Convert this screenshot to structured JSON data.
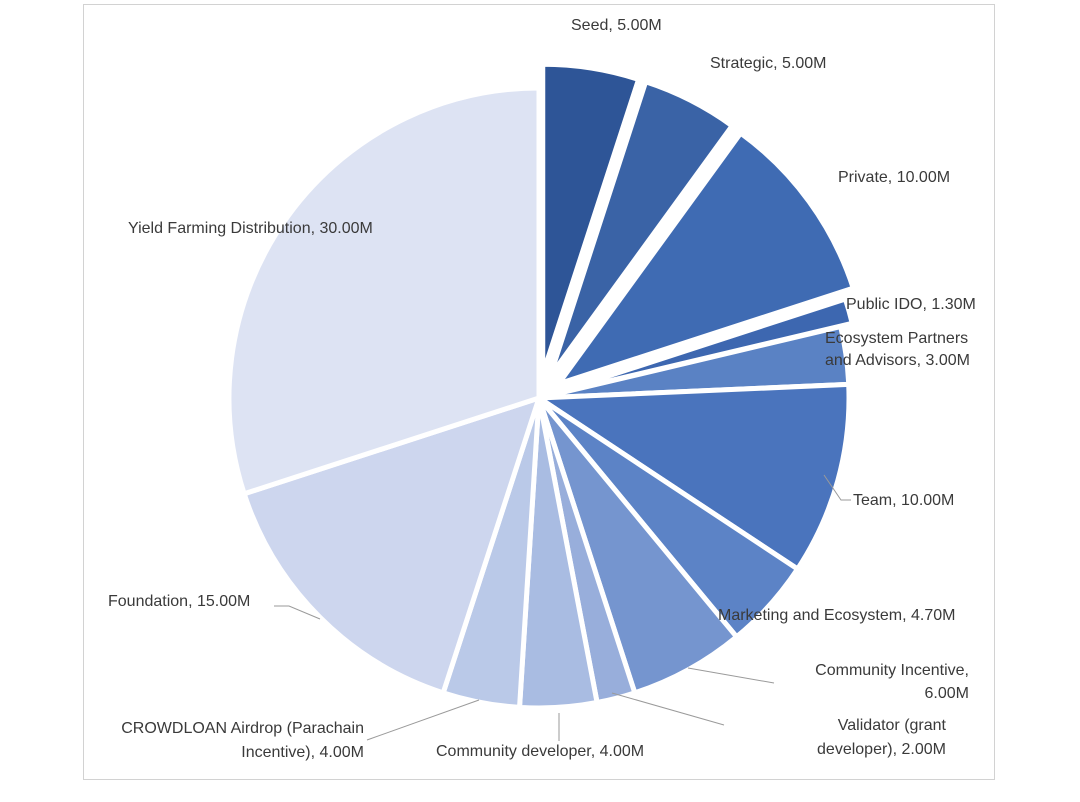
{
  "chart_data": {
    "type": "pie",
    "title": "",
    "slices": [
      {
        "label": "Seed, 5.00M",
        "name": "Seed",
        "value": 5.0,
        "color": "#2e5597"
      },
      {
        "label": "Strategic, 5.00M",
        "name": "Strategic",
        "value": 5.0,
        "color": "#3a63a6"
      },
      {
        "label": "Private, 10.00M",
        "name": "Private",
        "value": 10.0,
        "color": "#3f6bb3"
      },
      {
        "label": "Public IDO, 1.30M",
        "name": "Public IDO",
        "value": 1.3,
        "color": "#3d67b0"
      },
      {
        "label": [
          "Ecosystem Partners",
          "and Advisors, 3.00M"
        ],
        "name": "Ecosystem Partners and Advisors",
        "value": 3.0,
        "color": "#5a82c4"
      },
      {
        "label": "Team, 10.00M",
        "name": "Team",
        "value": 10.0,
        "color": "#4a74bd"
      },
      {
        "label": "Marketing and Ecosystem, 4.70M",
        "name": "Marketing and Ecosystem",
        "value": 4.7,
        "color": "#5c83c6"
      },
      {
        "label": [
          "Community Incentive,",
          "6.00M"
        ],
        "name": "Community Incentive",
        "value": 6.0,
        "color": "#7595cf"
      },
      {
        "label": [
          "Validator (grant",
          "developer), 2.00M"
        ],
        "name": "Validator (grant developer)",
        "value": 2.0,
        "color": "#98aedb"
      },
      {
        "label": "Community developer, 4.00M",
        "name": "Community developer",
        "value": 4.0,
        "color": "#a9bce2"
      },
      {
        "label": [
          "CROWDLOAN Airdrop (Parachain",
          "Incentive), 4.00M"
        ],
        "name": "CROWDLOAN Airdrop (Parachain Incentive)",
        "value": 4.0,
        "color": "#bac9e8"
      },
      {
        "label": "Foundation, 15.00M",
        "name": "Foundation",
        "value": 15.0,
        "color": "#cdd6ee"
      },
      {
        "label": "Yield Farming Distribution, 30.00M",
        "name": "Yield Farming Distribution",
        "value": 30.0,
        "color": "#dde3f3"
      }
    ]
  }
}
